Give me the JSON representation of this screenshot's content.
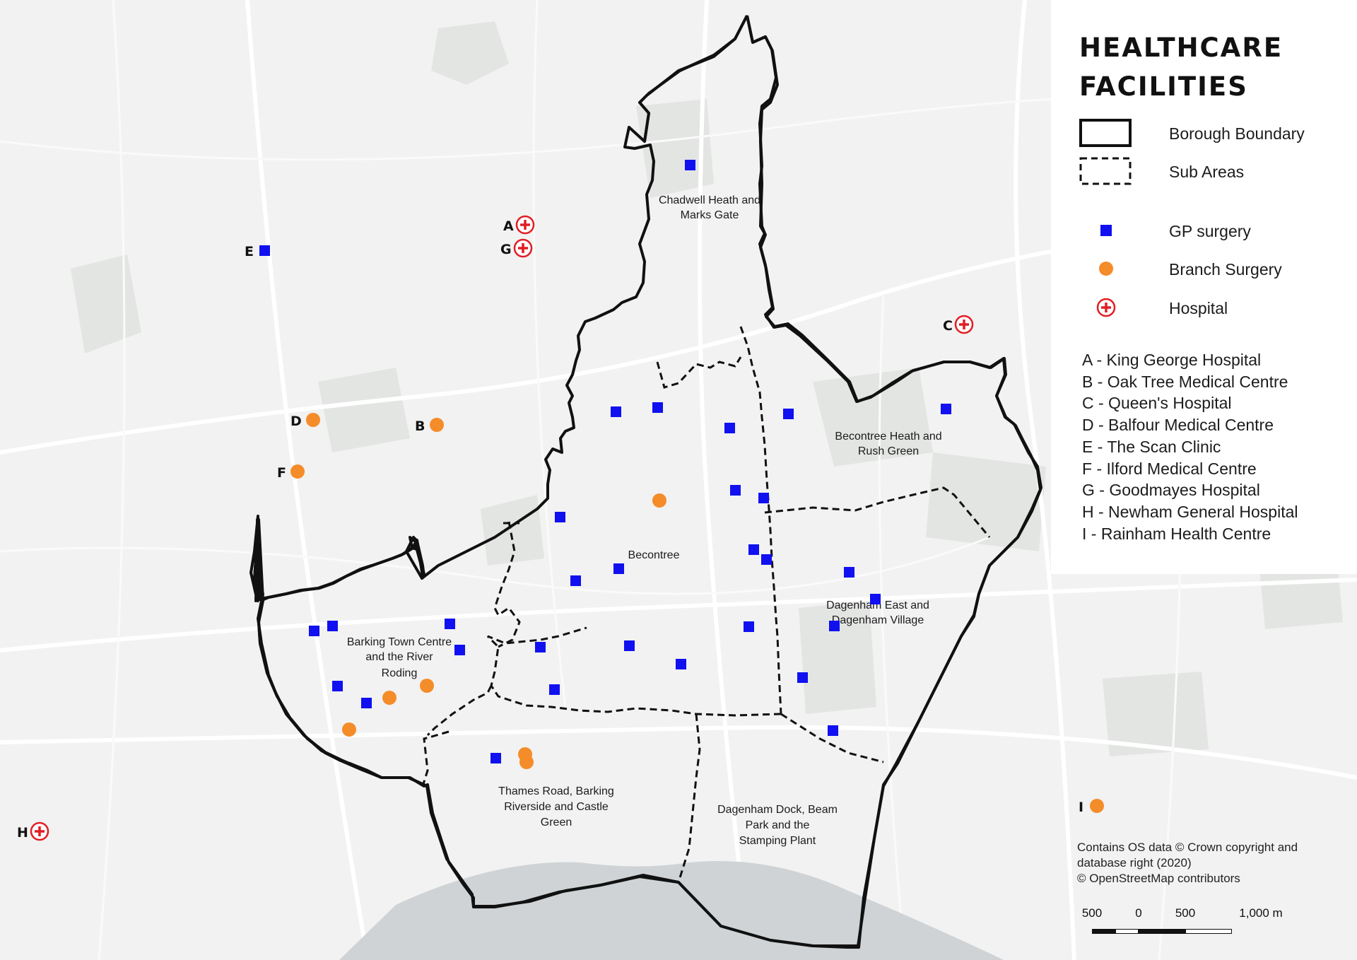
{
  "title": "HEALTHCARE FACILITIES",
  "legend": {
    "boundary_label": "Borough Boundary",
    "subareas_label": "Sub Areas",
    "gp_label": "GP surgery",
    "branch_label": "Branch Surgery",
    "hospital_label": "Hospital"
  },
  "facility_key": [
    "A - King George Hospital",
    "B - Oak Tree Medical Centre",
    "C - Queen's Hospital",
    "D - Balfour Medical Centre",
    "E - The Scan Clinic",
    "F - Ilford Medical Centre",
    "G - Goodmayes Hospital",
    "H - Newham General Hospital",
    "I - Rainham Health Centre"
  ],
  "external_markers": {
    "A": "A",
    "B": "B",
    "C": "C",
    "D": "D",
    "E": "E",
    "F": "F",
    "G": "G",
    "H": "H",
    "I": "I"
  },
  "sub_areas": {
    "chadwell": [
      "Chadwell Heath and",
      "Marks Gate"
    ],
    "becontree_heath": [
      "Becontree Heath and",
      "Rush Green"
    ],
    "becontree": [
      "Becontree"
    ],
    "dagenham_east": [
      "Dagenham East and",
      "Dagenham Village"
    ],
    "barking": [
      "Barking Town Centre",
      "and the River",
      "Roding"
    ],
    "thames": [
      "Thames Road, Barking",
      "Riverside and Castle",
      "Green"
    ],
    "dagenham_dock": [
      "Dagenham Dock, Beam",
      "Park and the",
      "Stamping Plant"
    ]
  },
  "attribution": [
    "Contains OS data © Crown copyright and",
    "database right (2020)",
    "© OpenStreetMap contributors"
  ],
  "scale_bar": {
    "labels": [
      "500",
      "0",
      "500",
      "1,000 m"
    ]
  },
  "colors": {
    "gp": "#1010f0",
    "branch": "#f58c2a",
    "hospital": "#e11d24",
    "boundary": "#111111",
    "background": "#f1f2f1",
    "river": "#cfd3d6"
  }
}
